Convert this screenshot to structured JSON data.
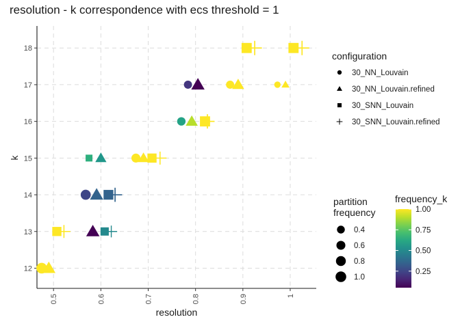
{
  "chart_data": {
    "type": "scatter",
    "title": "resolution - k correspondence with ecs threshold = 1",
    "xlabel": "resolution",
    "ylabel": "k",
    "xlim": [
      0.465,
      1.055
    ],
    "ylim": [
      11.45,
      18.6
    ],
    "x_ticks": [
      0.5,
      0.6,
      0.7,
      0.8,
      0.9,
      1.0
    ],
    "x_tick_labels": [
      "0.5",
      "0.6",
      "0.7",
      "0.8",
      "0.9",
      "1"
    ],
    "y_ticks": [
      12,
      13,
      14,
      15,
      16,
      17,
      18
    ],
    "y_tick_labels": [
      "12",
      "13",
      "14",
      "15",
      "16",
      "17",
      "18"
    ],
    "grid": true,
    "legend_shape": {
      "title": "configuration",
      "entries": [
        {
          "name": "30_NN_Louvain",
          "shape": "circle"
        },
        {
          "name": "30_NN_Louvain.refined",
          "shape": "triangle"
        },
        {
          "name": "30_SNN_Louvain",
          "shape": "square"
        },
        {
          "name": "30_SNN_Louvain.refined",
          "shape": "plus"
        }
      ]
    },
    "legend_size": {
      "title_line1": "partition",
      "title_line2": "frequency",
      "values": [
        0.4,
        0.6,
        0.8,
        1.0
      ],
      "labels": [
        "0.4",
        "0.6",
        "0.8",
        "1.0"
      ]
    },
    "legend_color": {
      "title": "frequency_k",
      "scale": "viridis",
      "range": [
        0.05,
        1.0
      ],
      "ticks": [
        0.25,
        0.5,
        0.75,
        1.0
      ],
      "tick_labels": [
        "0.25",
        "0.50",
        "0.75",
        "1.00"
      ]
    },
    "points": [
      {
        "config": "30_NN_Louvain",
        "x": 0.475,
        "k": 12,
        "freq": 1.0,
        "freq_k": 1.0
      },
      {
        "config": "30_NN_Louvain.refined",
        "x": 0.49,
        "k": 12,
        "freq": 1.0,
        "freq_k": 1.0
      },
      {
        "config": "30_SNN_Louvain",
        "x": 0.507,
        "k": 13,
        "freq": 0.75,
        "freq_k": 1.0
      },
      {
        "config": "30_SNN_Louvain.refined",
        "x": 0.522,
        "k": 13,
        "freq": 0.75,
        "freq_k": 1.0
      },
      {
        "config": "30_NN_Louvain.refined",
        "x": 0.583,
        "k": 13,
        "freq": 1.0,
        "freq_k": 0.05
      },
      {
        "config": "30_SNN_Louvain",
        "x": 0.608,
        "k": 13,
        "freq": 0.55,
        "freq_k": 0.5
      },
      {
        "config": "30_SNN_Louvain.refined",
        "x": 0.622,
        "k": 13,
        "freq": 0.55,
        "freq_k": 0.5
      },
      {
        "config": "30_NN_Louvain",
        "x": 0.568,
        "k": 14,
        "freq": 0.85,
        "freq_k": 0.25
      },
      {
        "config": "30_NN_Louvain.refined",
        "x": 0.591,
        "k": 14,
        "freq": 1.0,
        "freq_k": 0.35
      },
      {
        "config": "30_SNN_Louvain",
        "x": 0.616,
        "k": 14,
        "freq": 0.9,
        "freq_k": 0.35
      },
      {
        "config": "30_SNN_Louvain.refined",
        "x": 0.63,
        "k": 14,
        "freq": 0.95,
        "freq_k": 0.35
      },
      {
        "config": "30_SNN_Louvain",
        "x": 0.575,
        "k": 15,
        "freq": 0.3,
        "freq_k": 0.65
      },
      {
        "config": "30_NN_Louvain.refined",
        "x": 0.6,
        "k": 15,
        "freq": 0.6,
        "freq_k": 0.55
      },
      {
        "config": "30_NN_Louvain",
        "x": 0.674,
        "k": 15,
        "freq": 0.6,
        "freq_k": 1.0
      },
      {
        "config": "30_NN_Louvain.refined",
        "x": 0.69,
        "k": 15,
        "freq": 0.6,
        "freq_k": 1.0
      },
      {
        "config": "30_SNN_Louvain",
        "x": 0.708,
        "k": 15,
        "freq": 0.75,
        "freq_k": 1.0
      },
      {
        "config": "30_SNN_Louvain.refined",
        "x": 0.725,
        "k": 15,
        "freq": 0.75,
        "freq_k": 1.0
      },
      {
        "config": "30_NN_Louvain",
        "x": 0.77,
        "k": 16,
        "freq": 0.5,
        "freq_k": 0.6
      },
      {
        "config": "30_NN_Louvain.refined",
        "x": 0.792,
        "k": 16,
        "freq": 0.75,
        "freq_k": 0.9
      },
      {
        "config": "30_SNN_Louvain",
        "x": 0.82,
        "k": 16,
        "freq": 1.0,
        "freq_k": 1.0
      },
      {
        "config": "30_SNN_Louvain.refined",
        "x": 0.825,
        "k": 16,
        "freq": 1.0,
        "freq_k": 1.0
      },
      {
        "config": "30_NN_Louvain",
        "x": 0.784,
        "k": 17,
        "freq": 0.45,
        "freq_k": 0.2
      },
      {
        "config": "30_NN_Louvain.refined",
        "x": 0.805,
        "k": 17,
        "freq": 1.0,
        "freq_k": 0.02
      },
      {
        "config": "30_NN_Louvain",
        "x": 0.873,
        "k": 17,
        "freq": 0.45,
        "freq_k": 1.0
      },
      {
        "config": "30_NN_Louvain.refined",
        "x": 0.89,
        "k": 17,
        "freq": 0.75,
        "freq_k": 1.0
      },
      {
        "config": "30_NN_Louvain",
        "x": 0.973,
        "k": 17,
        "freq": 0.2,
        "freq_k": 1.0
      },
      {
        "config": "30_NN_Louvain.refined",
        "x": 0.99,
        "k": 17,
        "freq": 0.2,
        "freq_k": 1.0
      },
      {
        "config": "30_SNN_Louvain",
        "x": 0.908,
        "k": 18,
        "freq": 1.0,
        "freq_k": 1.0
      },
      {
        "config": "30_SNN_Louvain.refined",
        "x": 0.925,
        "k": 18,
        "freq": 1.0,
        "freq_k": 1.0
      },
      {
        "config": "30_SNN_Louvain",
        "x": 1.007,
        "k": 18,
        "freq": 1.0,
        "freq_k": 1.0
      },
      {
        "config": "30_SNN_Louvain.refined",
        "x": 1.025,
        "k": 18,
        "freq": 1.0,
        "freq_k": 1.0
      }
    ]
  }
}
